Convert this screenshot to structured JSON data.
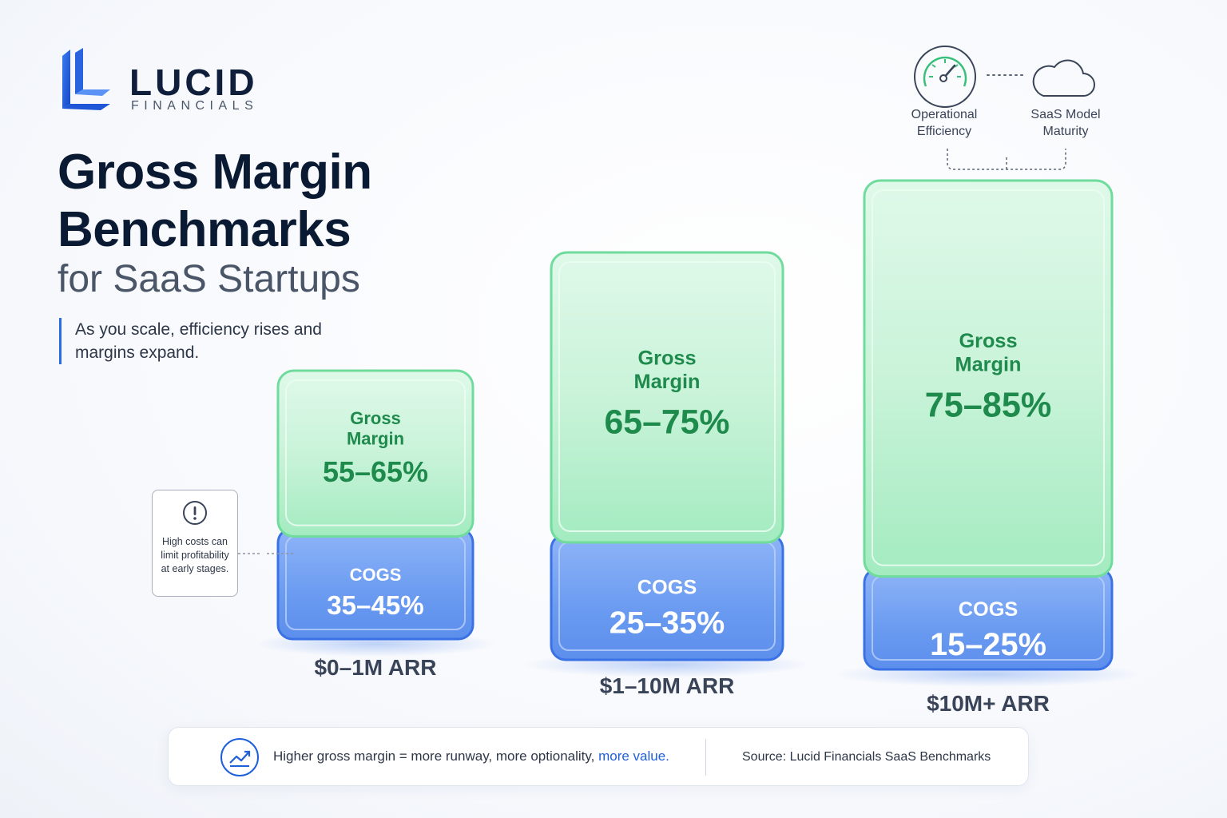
{
  "brand": {
    "name": "LUCID",
    "sub": "FINANCIALS"
  },
  "title": {
    "line1": "Gross Margin",
    "line2": "Benchmarks",
    "line3": "for SaaS Startups"
  },
  "tagline": "As you scale, efficiency rises and margins expand.",
  "callout": {
    "text": "High costs can limit profitability at early stages.",
    "icon": "exclamation-circle-icon"
  },
  "drivers": [
    {
      "label": "Operational Efficiency",
      "icon": "gauge-icon"
    },
    {
      "label": "SaaS Model Maturity",
      "icon": "cloud-icon"
    }
  ],
  "footer": {
    "main": "Higher gross margin = more runway, more optionality,",
    "accent": "more value.",
    "source": "Source: Lucid Financials SaaS Benchmarks",
    "icon": "trend-up-icon"
  },
  "colors": {
    "gross_margin": "#7be3a6",
    "cogs": "#4f86ec",
    "accent": "#1f5fd8",
    "gm_text": "#1e8a4c"
  },
  "chart_data": {
    "type": "bar",
    "stacked": true,
    "categories": [
      "$0–1M ARR",
      "$1–10M ARR",
      "$10M+ ARR"
    ],
    "series": [
      {
        "name": "COGS",
        "labels": [
          "35–45%",
          "25–35%",
          "15–25%"
        ],
        "low": [
          35,
          25,
          15
        ],
        "high": [
          45,
          35,
          25
        ]
      },
      {
        "name": "Gross Margin",
        "labels": [
          "55–65%",
          "65–75%",
          "75–85%"
        ],
        "low": [
          55,
          65,
          75
        ],
        "high": [
          65,
          75,
          85
        ]
      }
    ]
  }
}
